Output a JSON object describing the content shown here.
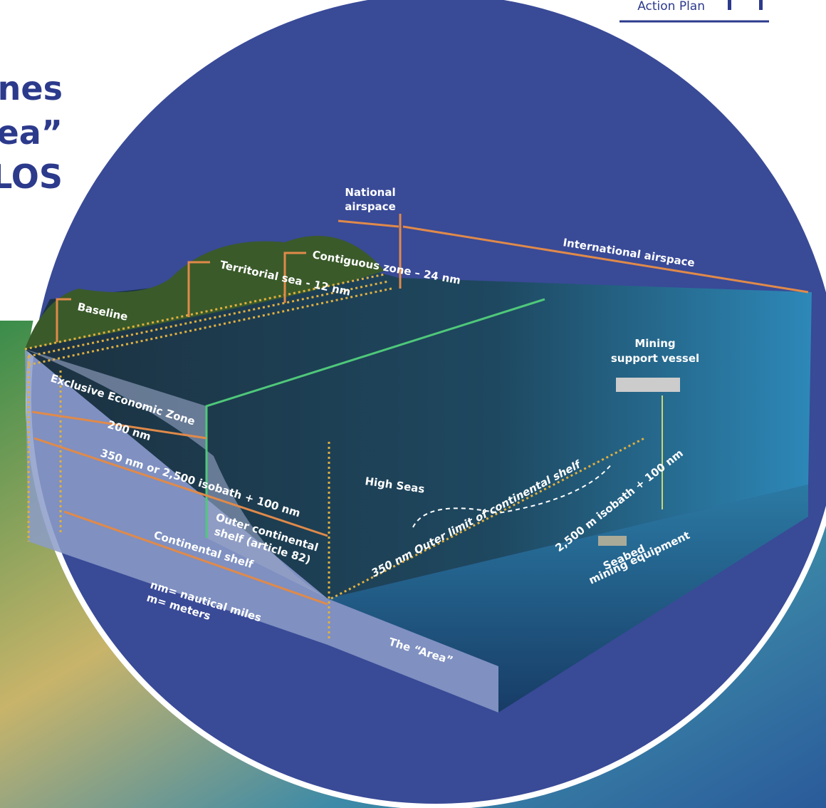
{
  "header": {
    "section": "Action Plan"
  },
  "title_fragments": [
    "nes",
    "ea”",
    "LOS"
  ],
  "diagram": {
    "national_airspace": [
      "National",
      "airspace"
    ],
    "international_airspace": "International airspace",
    "contiguous_zone": "Contiguous zone – 24 nm",
    "territorial_sea": "Territorial sea - 12 nm",
    "baseline": "Baseline",
    "vessel": [
      "Mining",
      "support vessel"
    ],
    "eez": "Exclusive Economic Zone",
    "eez_distance": "200 nm",
    "shelf_distance": "350 nm or 2,500 isobath + 100 nm",
    "high_seas": "High Seas",
    "outer_shelf": [
      "Outer continental",
      "shelf (article 82)"
    ],
    "continental_shelf": "Continental shelf",
    "outer_limit": "350 nm Outer limit of continental shelf",
    "isobath": "2,500 m isobath + 100 nm",
    "equipment": [
      "Seabed",
      "mining equipment"
    ],
    "legend": [
      "nm= nautical miles",
      "m= meters"
    ],
    "area": "The “Area”"
  }
}
